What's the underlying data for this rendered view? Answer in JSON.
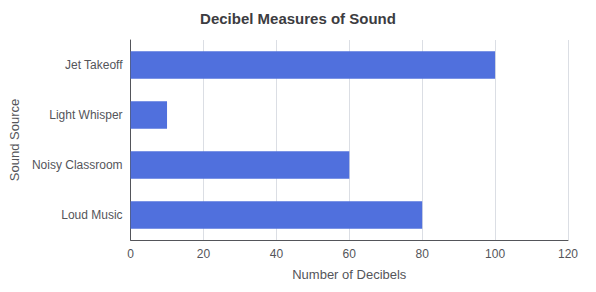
{
  "chart_data": {
    "type": "bar",
    "orientation": "horizontal",
    "title": "Decibel Measures of Sound",
    "categories": [
      "Jet Takeoff",
      "Light Whisper",
      "Noisy Classroom",
      "Loud Music"
    ],
    "values": [
      100,
      10,
      60,
      80
    ],
    "xlabel": "Number of Decibels",
    "ylabel": "Sound Source",
    "xlim": [
      0,
      120
    ],
    "xticks": [
      0,
      20,
      40,
      60,
      80,
      100,
      120
    ],
    "grid": true
  }
}
